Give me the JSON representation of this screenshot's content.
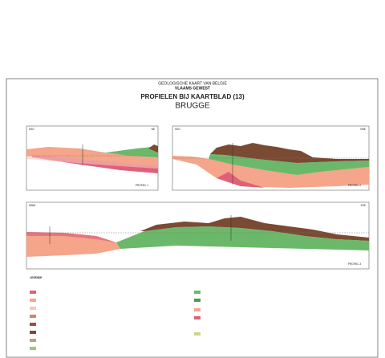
{
  "header": {
    "line1": "GEOLOGISCHE KAART VAN BELGIE",
    "line2": "VLAAMS GEWEST",
    "title": "PROFIELEN BIJ KAARTBLAD (13)",
    "subtitle": "BRUGGE"
  },
  "profiles": [
    {
      "left": "SSO",
      "right": "NE",
      "name": "PROFIEL 1"
    },
    {
      "left": "SSO",
      "right": "NNE",
      "name": "PROFIEL 2"
    },
    {
      "left": "WNW",
      "right": "ESE",
      "name": "PROFIEL 3"
    }
  ],
  "legend": {
    "title": "LEGENDE"
  }
}
